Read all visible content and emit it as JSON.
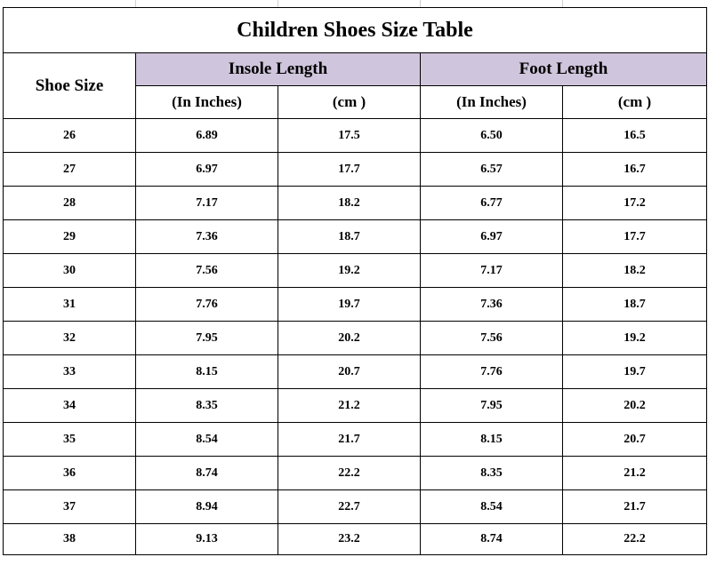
{
  "title": "Children Shoes Size Table",
  "headers": {
    "shoe_size": "Shoe Size",
    "insole_length": "Insole Length",
    "foot_length": "Foot Length",
    "insole_inches": "(In Inches)",
    "insole_cm": "(cm )",
    "foot_inches": "(In Inches)",
    "foot_cm": "(cm )"
  },
  "colors": {
    "group_header_bg": "#cfc5dc"
  },
  "rows": [
    {
      "size": "26",
      "insole_in": "6.89",
      "insole_cm": "17.5",
      "foot_in": "6.50",
      "foot_cm": "16.5"
    },
    {
      "size": "27",
      "insole_in": "6.97",
      "insole_cm": "17.7",
      "foot_in": "6.57",
      "foot_cm": "16.7"
    },
    {
      "size": "28",
      "insole_in": "7.17",
      "insole_cm": "18.2",
      "foot_in": "6.77",
      "foot_cm": "17.2"
    },
    {
      "size": "29",
      "insole_in": "7.36",
      "insole_cm": "18.7",
      "foot_in": "6.97",
      "foot_cm": "17.7"
    },
    {
      "size": "30",
      "insole_in": "7.56",
      "insole_cm": "19.2",
      "foot_in": "7.17",
      "foot_cm": "18.2"
    },
    {
      "size": "31",
      "insole_in": "7.76",
      "insole_cm": "19.7",
      "foot_in": "7.36",
      "foot_cm": "18.7"
    },
    {
      "size": "32",
      "insole_in": "7.95",
      "insole_cm": "20.2",
      "foot_in": "7.56",
      "foot_cm": "19.2"
    },
    {
      "size": "33",
      "insole_in": "8.15",
      "insole_cm": "20.7",
      "foot_in": "7.76",
      "foot_cm": "19.7"
    },
    {
      "size": "34",
      "insole_in": "8.35",
      "insole_cm": "21.2",
      "foot_in": "7.95",
      "foot_cm": "20.2"
    },
    {
      "size": "35",
      "insole_in": "8.54",
      "insole_cm": "21.7",
      "foot_in": "8.15",
      "foot_cm": "20.7"
    },
    {
      "size": "36",
      "insole_in": "8.74",
      "insole_cm": "22.2",
      "foot_in": "8.35",
      "foot_cm": "21.2"
    },
    {
      "size": "37",
      "insole_in": "8.94",
      "insole_cm": "22.7",
      "foot_in": "8.54",
      "foot_cm": "21.7"
    },
    {
      "size": "38",
      "insole_in": "9.13",
      "insole_cm": "23.2",
      "foot_in": "8.74",
      "foot_cm": "22.2"
    }
  ]
}
